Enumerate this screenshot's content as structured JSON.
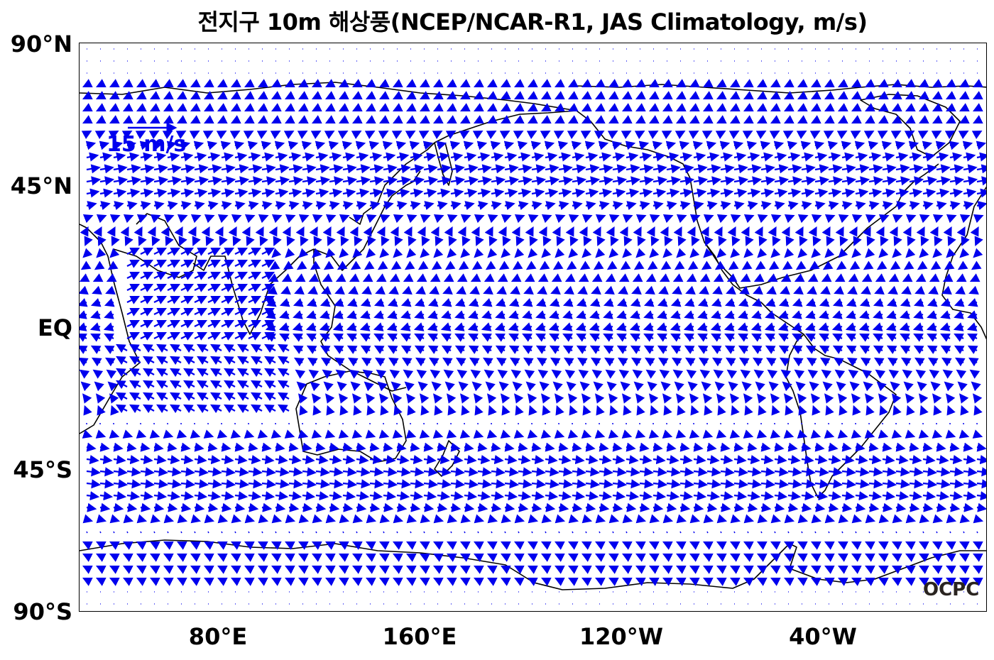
{
  "title": "전지구 10m 해상풍(NCEP/NCAR-R1, JAS Climatology, m/s)",
  "axes": {
    "lat_ticks": [
      "90°N",
      "45°N",
      "EQ",
      "45°S",
      "90°S"
    ],
    "lon_ticks": [
      "80°E",
      "160°E",
      "120°W",
      "40°W"
    ]
  },
  "scale_key": {
    "label": "15 m/s",
    "speed": 15,
    "color": "#0000ee"
  },
  "logo": "OCPC",
  "colors": {
    "arrow": "#0000ee",
    "coastline": "#000000",
    "background": "#ffffff"
  },
  "map_data": {
    "projection": "PlateCarree",
    "lon_range": [
      25,
      385
    ],
    "lat_range": [
      -90,
      90
    ],
    "variable": "10m wind vectors"
  }
}
